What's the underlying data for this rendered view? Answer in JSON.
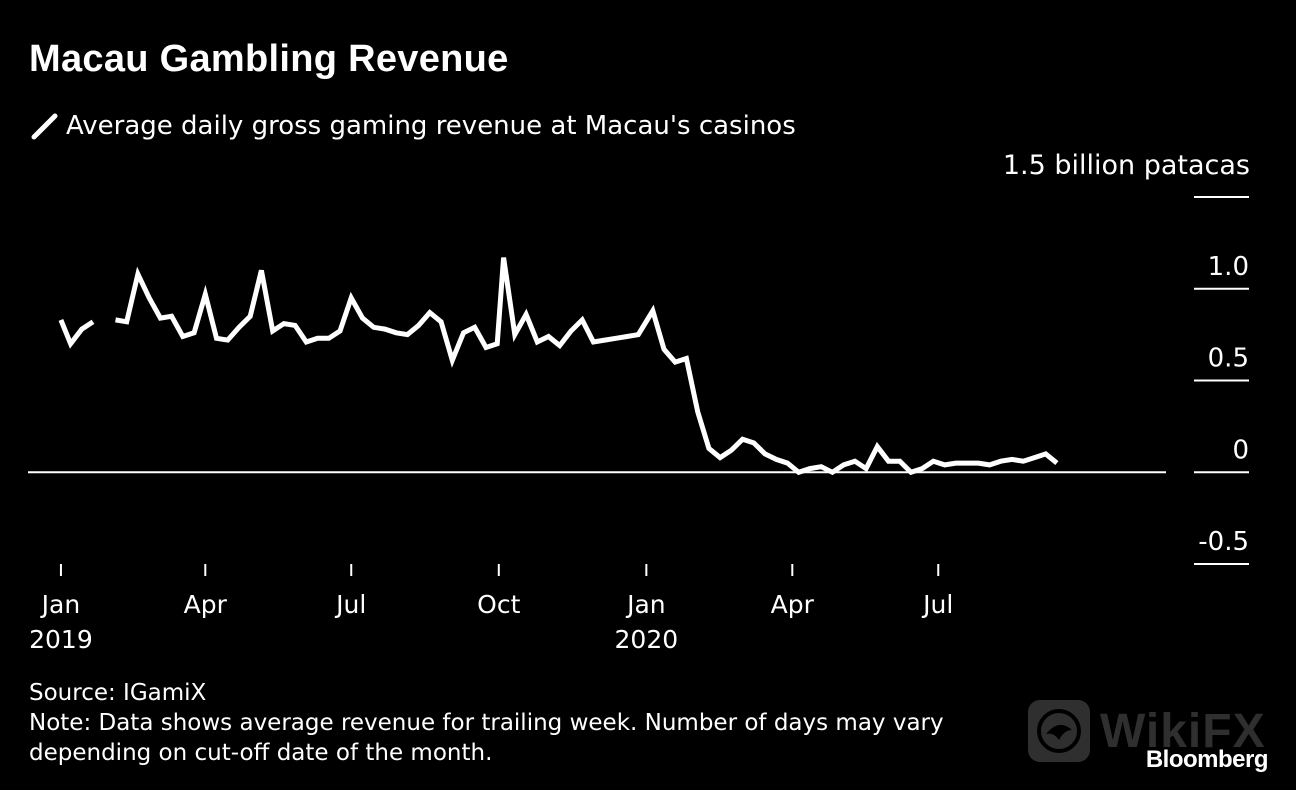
{
  "chart_data": {
    "type": "line",
    "title": "Macau Gambling Revenue",
    "series": [
      {
        "name": "Average daily gross gaming revenue at Macau's casinos",
        "color": "#ffffff",
        "points": [
          [
            "2019-01-01",
            0.83
          ],
          [
            "2019-01-07",
            0.7
          ],
          [
            "2019-01-14",
            0.78
          ],
          [
            "2019-01-21",
            0.82
          ],
          [
            "2019-01-28",
            null
          ],
          [
            "2019-02-04",
            0.83
          ],
          [
            "2019-02-11",
            0.82
          ],
          [
            "2019-02-18",
            1.08
          ],
          [
            "2019-02-25",
            0.95
          ],
          [
            "2019-03-04",
            0.84
          ],
          [
            "2019-03-11",
            0.85
          ],
          [
            "2019-03-18",
            0.74
          ],
          [
            "2019-03-25",
            0.76
          ],
          [
            "2019-04-01",
            0.97
          ],
          [
            "2019-04-08",
            0.73
          ],
          [
            "2019-04-15",
            0.72
          ],
          [
            "2019-04-22",
            0.79
          ],
          [
            "2019-04-29",
            0.85
          ],
          [
            "2019-05-06",
            1.1
          ],
          [
            "2019-05-13",
            0.77
          ],
          [
            "2019-05-20",
            0.81
          ],
          [
            "2019-05-27",
            0.8
          ],
          [
            "2019-06-03",
            0.71
          ],
          [
            "2019-06-10",
            0.73
          ],
          [
            "2019-06-17",
            0.73
          ],
          [
            "2019-06-24",
            0.77
          ],
          [
            "2019-07-01",
            0.95
          ],
          [
            "2019-07-08",
            0.84
          ],
          [
            "2019-07-15",
            0.79
          ],
          [
            "2019-07-22",
            0.78
          ],
          [
            "2019-07-29",
            0.76
          ],
          [
            "2019-08-05",
            0.75
          ],
          [
            "2019-08-12",
            0.8
          ],
          [
            "2019-08-19",
            0.87
          ],
          [
            "2019-08-26",
            0.82
          ],
          [
            "2019-09-02",
            0.61
          ],
          [
            "2019-09-09",
            0.76
          ],
          [
            "2019-09-16",
            0.79
          ],
          [
            "2019-09-23",
            0.68
          ],
          [
            "2019-09-30",
            0.7
          ],
          [
            "2019-10-04",
            1.17
          ],
          [
            "2019-10-11",
            0.75
          ],
          [
            "2019-10-18",
            0.86
          ],
          [
            "2019-10-25",
            0.71
          ],
          [
            "2019-11-01",
            0.74
          ],
          [
            "2019-11-08",
            0.69
          ],
          [
            "2019-11-15",
            0.77
          ],
          [
            "2019-11-22",
            0.83
          ],
          [
            "2019-11-29",
            0.71
          ],
          [
            "2019-12-06",
            0.72
          ],
          [
            "2019-12-13",
            0.73
          ],
          [
            "2019-12-20",
            0.74
          ],
          [
            "2019-12-27",
            0.75
          ],
          [
            "2020-01-05",
            0.88
          ],
          [
            "2020-01-12",
            0.67
          ],
          [
            "2020-01-19",
            0.6
          ],
          [
            "2020-01-26",
            0.62
          ],
          [
            "2020-02-02",
            0.33
          ],
          [
            "2020-02-09",
            0.13
          ],
          [
            "2020-02-16",
            0.08
          ],
          [
            "2020-02-23",
            0.12
          ],
          [
            "2020-03-01",
            0.18
          ],
          [
            "2020-03-08",
            0.16
          ],
          [
            "2020-03-15",
            0.1
          ],
          [
            "2020-03-22",
            0.07
          ],
          [
            "2020-03-29",
            0.05
          ],
          [
            "2020-04-05",
            0.0
          ],
          [
            "2020-04-12",
            0.02
          ],
          [
            "2020-04-19",
            0.03
          ],
          [
            "2020-04-26",
            0.0
          ],
          [
            "2020-05-03",
            0.04
          ],
          [
            "2020-05-10",
            0.06
          ],
          [
            "2020-05-17",
            0.02
          ],
          [
            "2020-05-24",
            0.14
          ],
          [
            "2020-05-31",
            0.06
          ],
          [
            "2020-06-07",
            0.06
          ],
          [
            "2020-06-14",
            0.0
          ],
          [
            "2020-06-21",
            0.02
          ],
          [
            "2020-06-28",
            0.06
          ],
          [
            "2020-07-05",
            0.04
          ],
          [
            "2020-07-12",
            0.05
          ],
          [
            "2020-07-19",
            0.05
          ],
          [
            "2020-07-26",
            0.05
          ],
          [
            "2020-08-02",
            0.04
          ],
          [
            "2020-08-09",
            0.06
          ],
          [
            "2020-08-16",
            0.07
          ],
          [
            "2020-08-23",
            0.06
          ],
          [
            "2020-08-30",
            0.08
          ],
          [
            "2020-09-06",
            0.1
          ],
          [
            "2020-09-13",
            0.05
          ]
        ]
      }
    ],
    "y_unit_label": "1.5 billion patacas",
    "ylim": [
      -0.5,
      1.5
    ],
    "y_ticks": [
      {
        "value": 1.5,
        "label": ""
      },
      {
        "value": 1.0,
        "label": "1.0"
      },
      {
        "value": 0.5,
        "label": "0.5"
      },
      {
        "value": 0,
        "label": "0"
      },
      {
        "value": -0.5,
        "label": "-0.5"
      }
    ],
    "x_ticks": [
      {
        "date": "2019-01-01",
        "label": "Jan",
        "year": "2019"
      },
      {
        "date": "2019-04-01",
        "label": "Apr",
        "year": ""
      },
      {
        "date": "2019-07-01",
        "label": "Jul",
        "year": ""
      },
      {
        "date": "2019-10-01",
        "label": "Oct",
        "year": ""
      },
      {
        "date": "2020-01-01",
        "label": "Jan",
        "year": "2020"
      },
      {
        "date": "2020-04-01",
        "label": "Apr",
        "year": ""
      },
      {
        "date": "2020-07-01",
        "label": "Jul",
        "year": ""
      }
    ],
    "xlim": [
      "2018-11-24",
      "2020-11-20"
    ],
    "grid": false,
    "legend": "top-left"
  },
  "footer": {
    "source": "Source: IGamiX",
    "note_line1": "Note: Data shows average revenue for trailing week. Number of days may vary",
    "note_line2": "depending on cut-off date of the month."
  },
  "watermark": {
    "text": "WikiFX"
  },
  "brand": {
    "text": "Bloomberg"
  },
  "colors": {
    "background": "#000000",
    "line": "#ffffff",
    "watermark": "#888888"
  }
}
